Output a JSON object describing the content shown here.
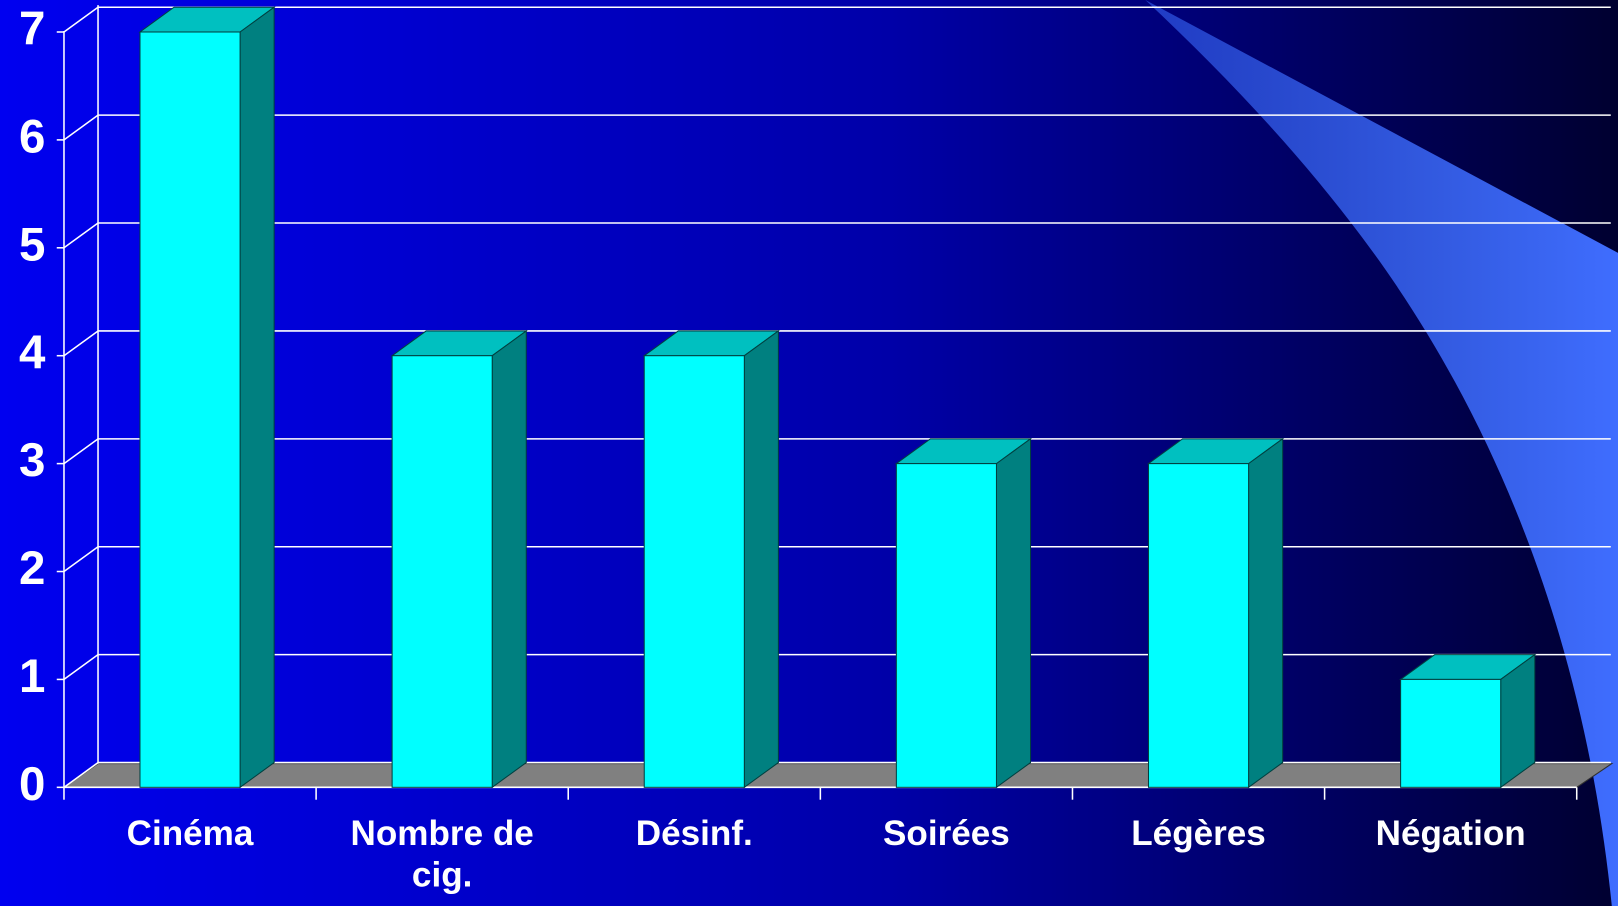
{
  "chart_data": {
    "type": "bar3d",
    "categories": [
      "Cinéma",
      "Nombre de cig.",
      "Désinf.",
      "Soirées",
      "Légères",
      "Négation"
    ],
    "values": [
      7,
      4,
      4,
      3,
      3,
      1
    ],
    "color": "#00ffff",
    "ylim": [
      0,
      7
    ],
    "yticks": [
      0,
      1,
      2,
      3,
      4,
      5,
      6,
      7
    ],
    "grid": true
  }
}
